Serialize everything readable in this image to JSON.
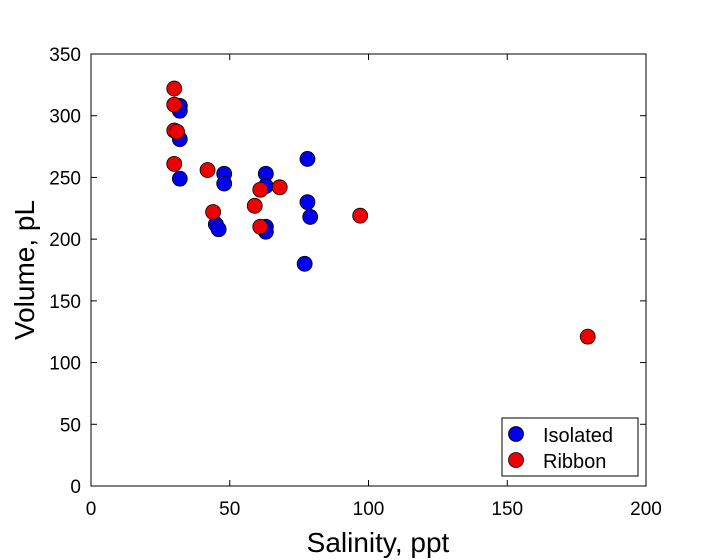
{
  "chart_data": {
    "type": "scatter",
    "title": "",
    "xlabel": "Salinity, ppt",
    "ylabel": "Volume, pL",
    "xlim": [
      0,
      200
    ],
    "ylim": [
      0,
      350
    ],
    "xticks": [
      0,
      50,
      100,
      150,
      200
    ],
    "yticks": [
      0,
      50,
      100,
      150,
      200,
      250,
      300,
      350
    ],
    "grid": false,
    "legend_position": "bottom-right",
    "series": [
      {
        "name": "Isolated",
        "color": "#0000ee",
        "points": [
          {
            "x": 32,
            "y": 308
          },
          {
            "x": 32,
            "y": 304
          },
          {
            "x": 32,
            "y": 281
          },
          {
            "x": 32,
            "y": 249
          },
          {
            "x": 45,
            "y": 212
          },
          {
            "x": 46,
            "y": 208
          },
          {
            "x": 48,
            "y": 253
          },
          {
            "x": 48,
            "y": 245
          },
          {
            "x": 63,
            "y": 253
          },
          {
            "x": 63,
            "y": 243
          },
          {
            "x": 63,
            "y": 210
          },
          {
            "x": 63,
            "y": 206
          },
          {
            "x": 78,
            "y": 265
          },
          {
            "x": 78,
            "y": 230
          },
          {
            "x": 79,
            "y": 218
          },
          {
            "x": 77,
            "y": 180
          }
        ]
      },
      {
        "name": "Ribbon",
        "color": "#ee0000",
        "points": [
          {
            "x": 30,
            "y": 322
          },
          {
            "x": 30,
            "y": 309
          },
          {
            "x": 30,
            "y": 288
          },
          {
            "x": 31,
            "y": 287
          },
          {
            "x": 30,
            "y": 261
          },
          {
            "x": 42,
            "y": 256
          },
          {
            "x": 44,
            "y": 222
          },
          {
            "x": 59,
            "y": 227
          },
          {
            "x": 61,
            "y": 240
          },
          {
            "x": 61,
            "y": 210
          },
          {
            "x": 68,
            "y": 242
          },
          {
            "x": 97,
            "y": 219
          },
          {
            "x": 179,
            "y": 121
          }
        ]
      }
    ]
  }
}
